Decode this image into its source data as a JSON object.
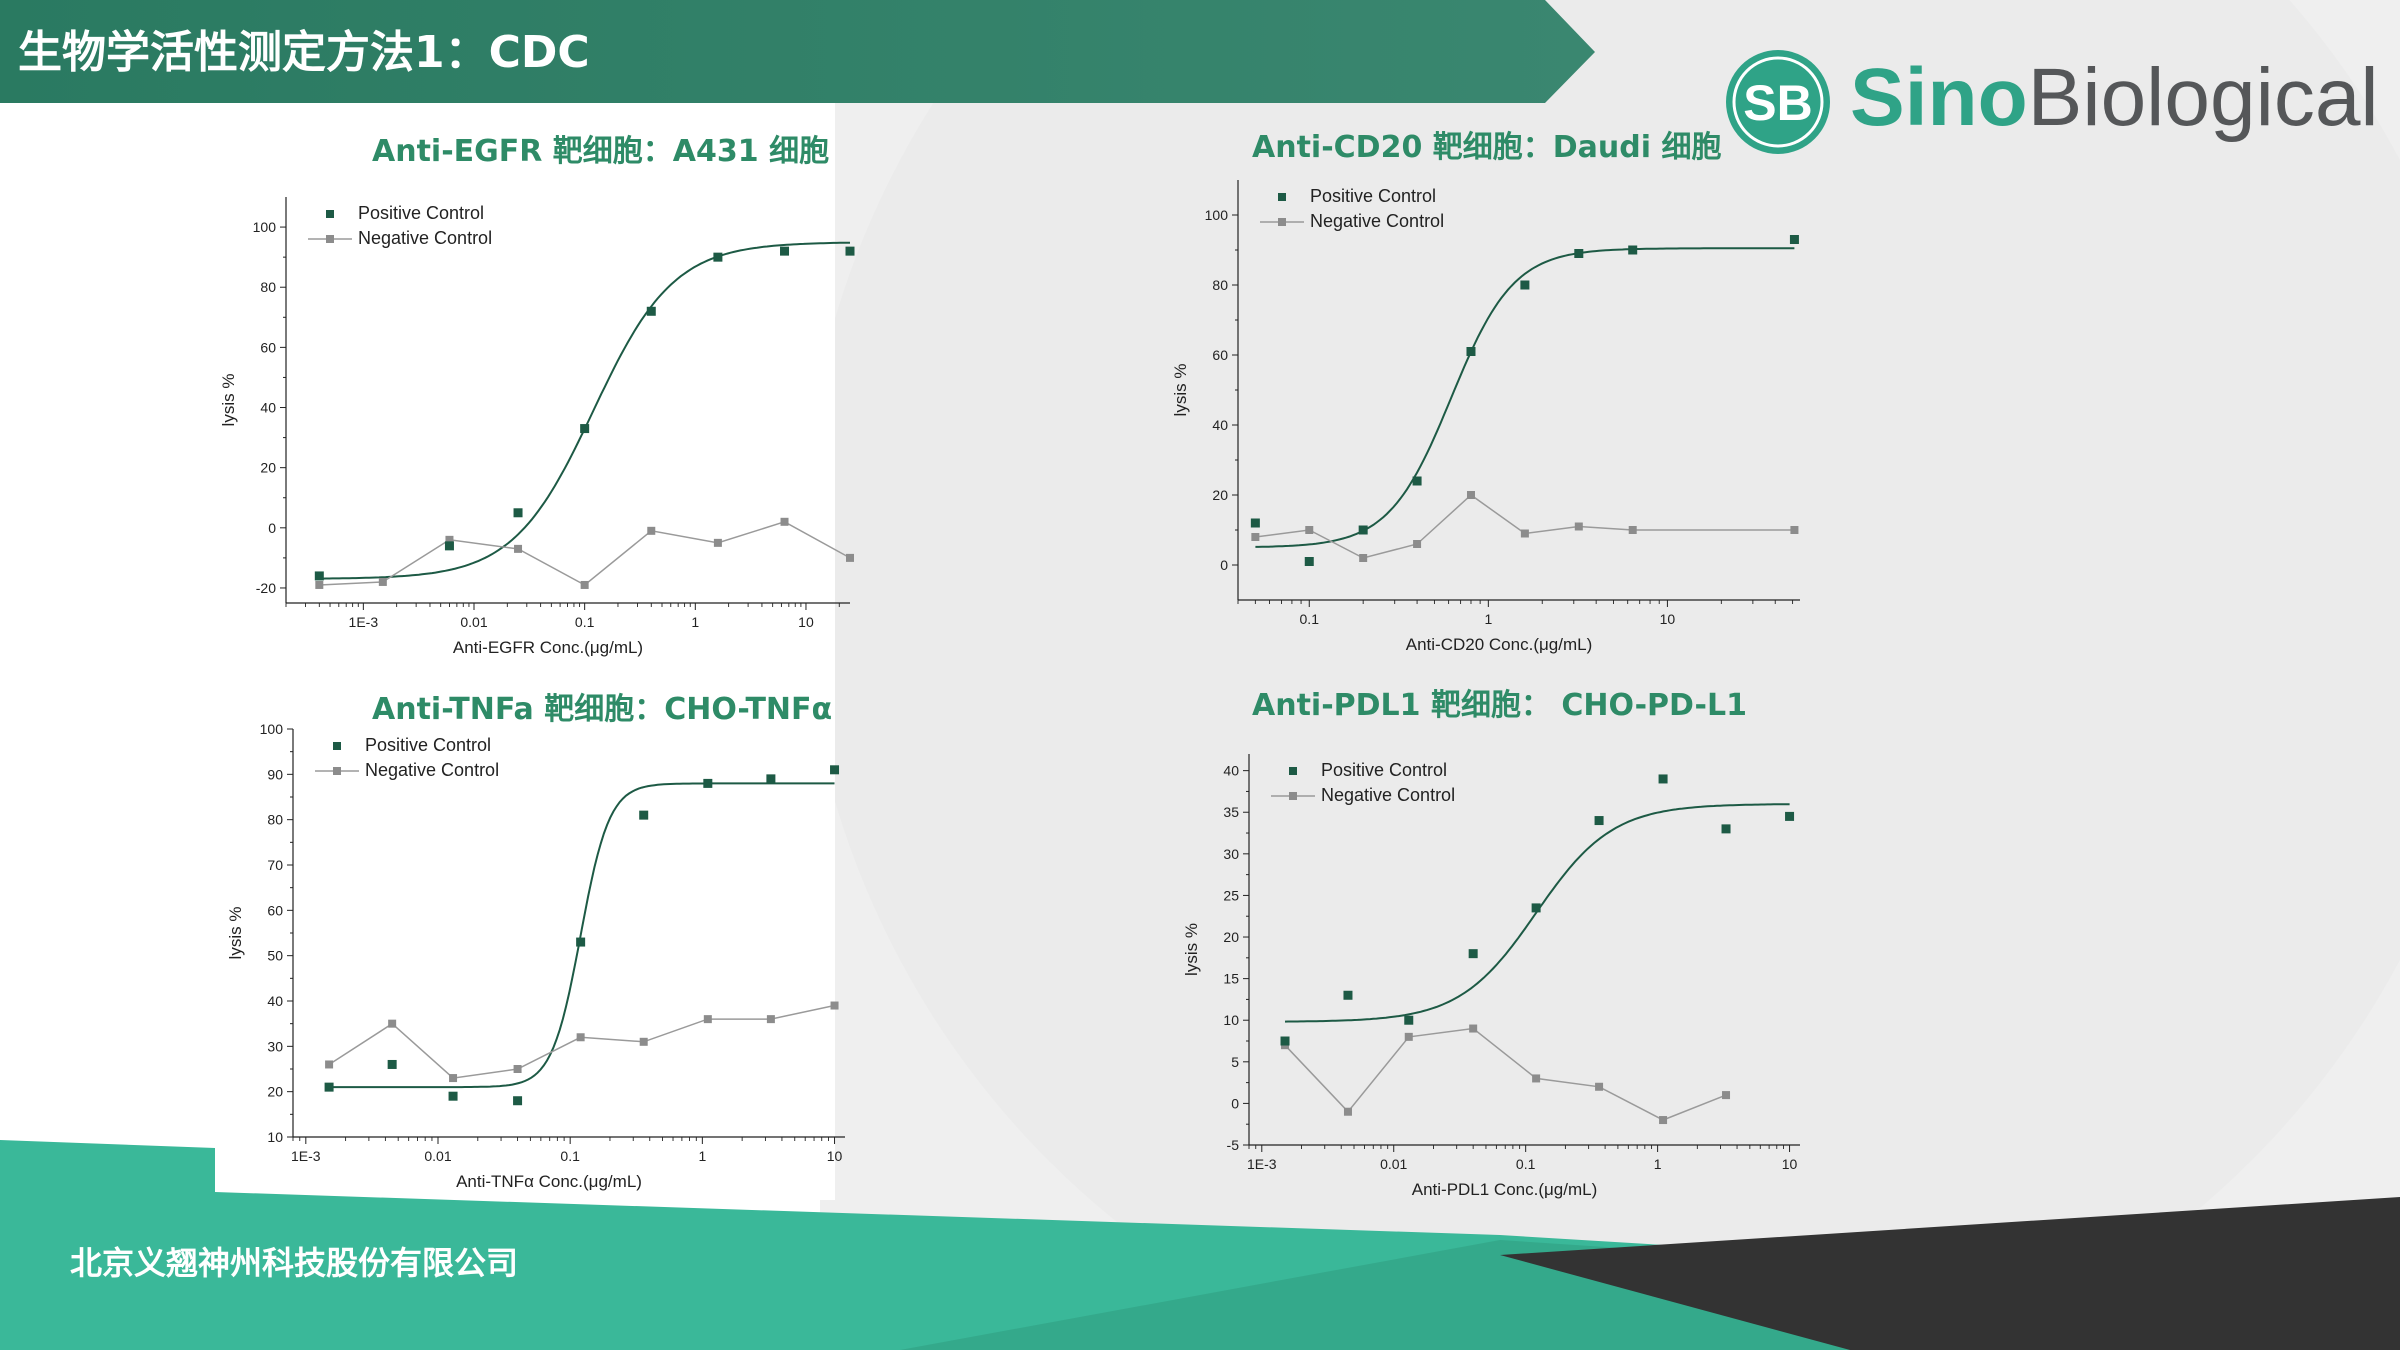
{
  "header": {
    "title": "生物学活性测定方法1：CDC"
  },
  "logo": {
    "badge": "SB",
    "sino": "Sino",
    "bio": "Biological"
  },
  "footer": {
    "company": "北京义翘神州科技股份有限公司"
  },
  "colors": {
    "header_green": "#2e7c62",
    "teal": "#3ab899",
    "positive": "#1d5a45",
    "negative": "#8c8c8c",
    "title_green": "#2e8b67"
  },
  "chart_data": [
    {
      "type": "scatter",
      "title": "Anti-EGFR 靶细胞：A431 细胞",
      "xlabel": "Anti-EGFR Conc.(μg/mL)",
      "ylabel": "lysis %",
      "xscale": "log",
      "xlim": [
        0.0002,
        25
      ],
      "ylim": [
        -25,
        110
      ],
      "xticks": [
        0.001,
        0.01,
        0.1,
        1,
        10
      ],
      "xtick_labels": [
        "1E-3",
        "0.01",
        "0.1",
        "1",
        "10"
      ],
      "yticks": [
        -20,
        0,
        20,
        40,
        60,
        80,
        100
      ],
      "legend": [
        "Positive Control",
        "Negative Control"
      ],
      "series": [
        {
          "name": "Positive Control",
          "x": [
            0.0004,
            0.006,
            0.025,
            0.1,
            0.4,
            1.6,
            6.4,
            25
          ],
          "y": [
            -16,
            -6,
            5,
            33,
            72,
            90,
            92,
            92
          ]
        },
        {
          "name": "Negative Control",
          "x": [
            0.0004,
            0.0015,
            0.006,
            0.025,
            0.1,
            0.4,
            1.6,
            6.4,
            25
          ],
          "y": [
            -19,
            -18,
            -4,
            -7,
            -19,
            -1,
            -5,
            2,
            -10
          ]
        }
      ],
      "fit": {
        "bottom": -17,
        "top": 95,
        "ec50": 0.12,
        "hill": 1.2
      }
    },
    {
      "type": "scatter",
      "title": "Anti-CD20 靶细胞：Daudi 细胞",
      "xlabel": "Anti-CD20 Conc.(μg/mL)",
      "ylabel": "lysis %",
      "xscale": "log",
      "xlim": [
        0.04,
        55
      ],
      "ylim": [
        -10,
        110
      ],
      "xticks": [
        0.1,
        1,
        10
      ],
      "xtick_labels": [
        "0.1",
        "1",
        "10"
      ],
      "yticks": [
        0,
        20,
        40,
        60,
        80,
        100
      ],
      "legend": [
        "Positive Control",
        "Negative Control"
      ],
      "series": [
        {
          "name": "Positive Control",
          "x": [
            0.05,
            0.1,
            0.2,
            0.4,
            0.8,
            1.6,
            3.2,
            6.4,
            51.2
          ],
          "y": [
            12,
            1,
            10,
            24,
            61,
            80,
            89,
            90,
            93
          ]
        },
        {
          "name": "Negative Control",
          "x": [
            0.05,
            0.1,
            0.2,
            0.4,
            0.8,
            1.6,
            3.2,
            6.4,
            51.2
          ],
          "y": [
            8,
            10,
            2,
            6,
            20,
            9,
            11,
            10,
            10
          ]
        }
      ],
      "fit": {
        "bottom": 5,
        "top": 90.5,
        "ec50": 0.62,
        "hill": 2.5
      }
    },
    {
      "type": "scatter",
      "title": "Anti-TNFa 靶细胞：CHO-TNFα",
      "xlabel": "Anti-TNFα Conc.(μg/mL)",
      "ylabel": "lysis %",
      "xscale": "log",
      "xlim": [
        0.0008,
        12
      ],
      "ylim": [
        10,
        100
      ],
      "xticks": [
        0.001,
        0.01,
        0.1,
        1,
        10
      ],
      "xtick_labels": [
        "1E-3",
        "0.01",
        "0.1",
        "1",
        "10"
      ],
      "yticks": [
        10,
        20,
        30,
        40,
        50,
        60,
        70,
        80,
        90,
        100
      ],
      "legend": [
        "Positive Control",
        "Negative Control"
      ],
      "series": [
        {
          "name": "Positive Control",
          "x": [
            0.0015,
            0.0045,
            0.013,
            0.04,
            0.12,
            0.36,
            1.1,
            3.3,
            10
          ],
          "y": [
            21,
            26,
            19,
            18,
            53,
            81,
            88,
            89,
            91
          ]
        },
        {
          "name": "Negative Control",
          "x": [
            0.0015,
            0.0045,
            0.013,
            0.04,
            0.12,
            0.36,
            1.1,
            3.3,
            10
          ],
          "y": [
            26,
            35,
            23,
            25,
            32,
            31,
            36,
            36,
            39
          ]
        }
      ],
      "fit": {
        "bottom": 21,
        "top": 88,
        "ec50": 0.12,
        "hill": 4
      }
    },
    {
      "type": "scatter",
      "title": "Anti-PDL1 靶细胞： CHO-PD-L1",
      "xlabel": "Anti-PDL1 Conc.(μg/mL)",
      "ylabel": "lysis %",
      "xscale": "log",
      "xlim": [
        0.0008,
        12
      ],
      "ylim": [
        -5,
        42
      ],
      "xticks": [
        0.001,
        0.01,
        0.1,
        1,
        10
      ],
      "xtick_labels": [
        "1E-3",
        "0.01",
        "0.1",
        "1",
        "10"
      ],
      "yticks": [
        -5,
        0,
        5,
        10,
        15,
        20,
        25,
        30,
        35,
        40
      ],
      "legend": [
        "Positive Control",
        "Negative Control"
      ],
      "series": [
        {
          "name": "Positive Control",
          "x": [
            0.0015,
            0.0045,
            0.013,
            0.04,
            0.12,
            0.36,
            1.1,
            3.3,
            10
          ],
          "y": [
            7.5,
            13,
            10,
            18,
            23.5,
            34,
            39,
            33,
            34.5
          ]
        },
        {
          "name": "Negative Control",
          "x": [
            0.0015,
            0.0045,
            0.013,
            0.04,
            0.12,
            0.36,
            1.1,
            3.3
          ],
          "y": [
            7,
            -1,
            8,
            9,
            3,
            2,
            -2,
            1
          ]
        }
      ],
      "fit": {
        "bottom": 9.8,
        "top": 36,
        "ec50": 0.12,
        "hill": 1.5
      }
    }
  ]
}
